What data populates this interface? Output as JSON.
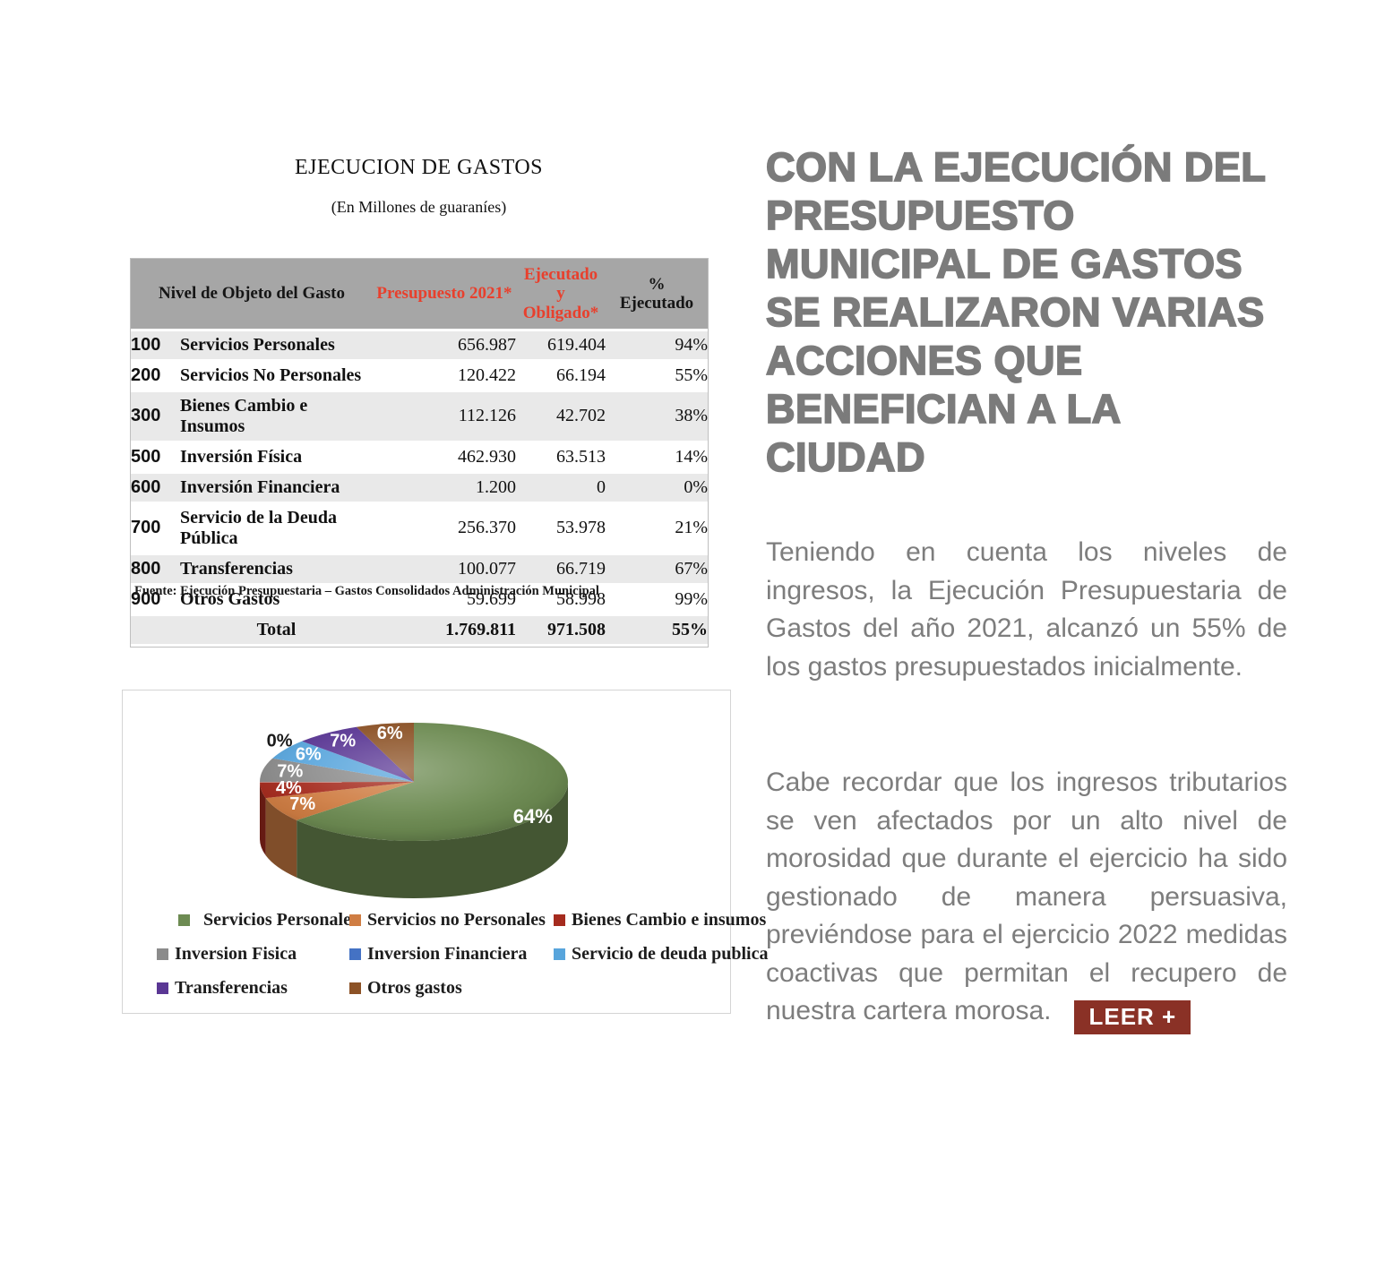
{
  "report": {
    "title": "EJECUCION DE GASTOS",
    "subtitle": "(En Millones de guaraníes)",
    "table": {
      "col_headers": {
        "nivel": "Nivel de Objeto del Gasto",
        "presupuesto": "Presupuesto 2021*",
        "ejecutado": "Ejecutado y Obligado*",
        "pct": "% Ejecutado"
      },
      "header_accent_color": "#e8402d",
      "rows": [
        {
          "code": "100",
          "label": "Servicios Personales",
          "presupuesto": "656.987",
          "ejecutado": "619.404",
          "pct": "94%"
        },
        {
          "code": "200",
          "label": "Servicios No Personales",
          "presupuesto": "120.422",
          "ejecutado": "66.194",
          "pct": "55%"
        },
        {
          "code": "300",
          "label": "Bienes Cambio e Insumos",
          "presupuesto": "112.126",
          "ejecutado": "42.702",
          "pct": "38%"
        },
        {
          "code": "500",
          "label": "Inversión Física",
          "presupuesto": "462.930",
          "ejecutado": "63.513",
          "pct": "14%"
        },
        {
          "code": "600",
          "label": "Inversión Financiera",
          "presupuesto": "1.200",
          "ejecutado": "0",
          "pct": "0%"
        },
        {
          "code": "700",
          "label": "Servicio de la Deuda Pública",
          "presupuesto": "256.370",
          "ejecutado": "53.978",
          "pct": "21%"
        },
        {
          "code": "800",
          "label": "Transferencias",
          "presupuesto": "100.077",
          "ejecutado": "66.719",
          "pct": "67%"
        },
        {
          "code": "900",
          "label": "Otros Gastos",
          "presupuesto": "59.699",
          "ejecutado": "58.998",
          "pct": "99%"
        }
      ],
      "total_row": {
        "label": "Total",
        "presupuesto": "1.769.811",
        "ejecutado": "971.508",
        "pct": "55%"
      },
      "source": "Fuente: Ejecución Presupuestaria – Gastos Consolidados Administración Municipal"
    }
  },
  "chart_data": {
    "type": "pie",
    "style": "3d",
    "labels": [
      "Servicios Personales",
      "Servicios no Personales",
      "Bienes Cambio e insumos",
      "Inversion Fisica",
      "Inversion Financiera",
      "Servicio de deuda publica",
      "Transferencias",
      "Otros gastos"
    ],
    "values": [
      619404,
      66194,
      42702,
      63513,
      0,
      53978,
      66719,
      58998
    ],
    "percent_labels": [
      "64%",
      "7%",
      "4%",
      "7%",
      "0%",
      "6%",
      "7%",
      "6%"
    ],
    "colors": [
      "#6d8b52",
      "#cf7d43",
      "#a52b1e",
      "#8b8b8b",
      "#4472c4",
      "#58a5dc",
      "#5a3794",
      "#8c5226"
    ],
    "legend_position": "bottom",
    "grid": false
  },
  "article": {
    "heading_lines": [
      "CON LA EJECUCIÓN DEL",
      "PRESUPUESTO",
      "MUNICIPAL DE GASTOS",
      "SE REALIZARON VARIAS",
      "ACCIONES QUE",
      "BENEFICIAN A LA",
      "CIUDAD"
    ],
    "heading_color": "#7b7b7b",
    "paragraphs": [
      "Teniendo en cuenta los niveles de ingresos, la Ejecución Presupuestaria de Gastos del año 2021, alcanzó un 55% de los gastos presupuestados inicialmente.",
      "Cabe recordar que los ingresos tributarios se ven afectados por un alto nivel de morosidad que durante el ejercicio ha sido gestionado de manera persuasiva, previéndose para el ejercicio 2022 medidas coactivas que permitan el recupero de nuestra cartera morosa."
    ],
    "read_more_label": "LEER +",
    "read_more_color": "#8a3126"
  }
}
